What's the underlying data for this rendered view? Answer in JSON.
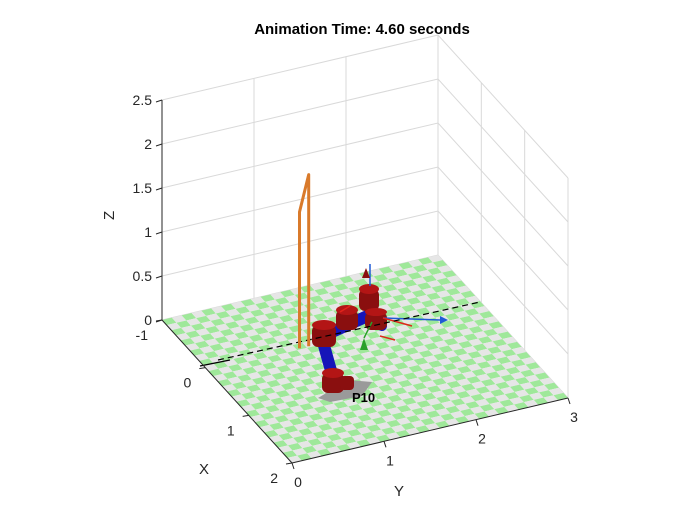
{
  "chart_data": {
    "type": "scatter",
    "title": "Animation Time: 4.60 seconds",
    "xlabel": "X",
    "ylabel": "Y",
    "zlabel": "Z",
    "xlim": [
      -1,
      2
    ],
    "ylim": [
      0,
      3
    ],
    "zlim": [
      0,
      2.5
    ],
    "x_ticks": [
      "-1",
      "0",
      "1",
      "2"
    ],
    "y_ticks": [
      "0",
      "1",
      "2",
      "3"
    ],
    "z_ticks": [
      "0",
      "0.5",
      "1",
      "1.5",
      "2",
      "2.5"
    ],
    "grid": true,
    "floor_colors": [
      "#9fe89a",
      "#e6e6e6"
    ],
    "trajectory_color": "#d97a2b",
    "trajectory": [
      {
        "x": 0.05,
        "y": 1.1,
        "z": 0.0
      },
      {
        "x": 0.05,
        "y": 1.1,
        "z": 1.95
      },
      {
        "x": 0.05,
        "y": 1.0,
        "z": 1.55
      },
      {
        "x": 0.05,
        "y": 1.0,
        "z": 0.0
      }
    ],
    "frame_labels": [
      {
        "text": "X",
        "color": "#1f5bd6"
      },
      {
        "text": "Z",
        "color": "#e0241a"
      },
      {
        "text": "D",
        "color": "#1f5bd6"
      },
      {
        "text": "X",
        "color": "#e0241a"
      },
      {
        "text": "Z",
        "color": "#1f5bd6"
      },
      {
        "text": "Y",
        "color": "#1f5bd6"
      },
      {
        "text": "X",
        "color": "#e0241a"
      },
      {
        "text": "Z",
        "color": "#262626"
      },
      {
        "text": "Y",
        "color": "#262626"
      },
      {
        "text": "X",
        "color": "#262626"
      }
    ],
    "base_label": "P10"
  }
}
